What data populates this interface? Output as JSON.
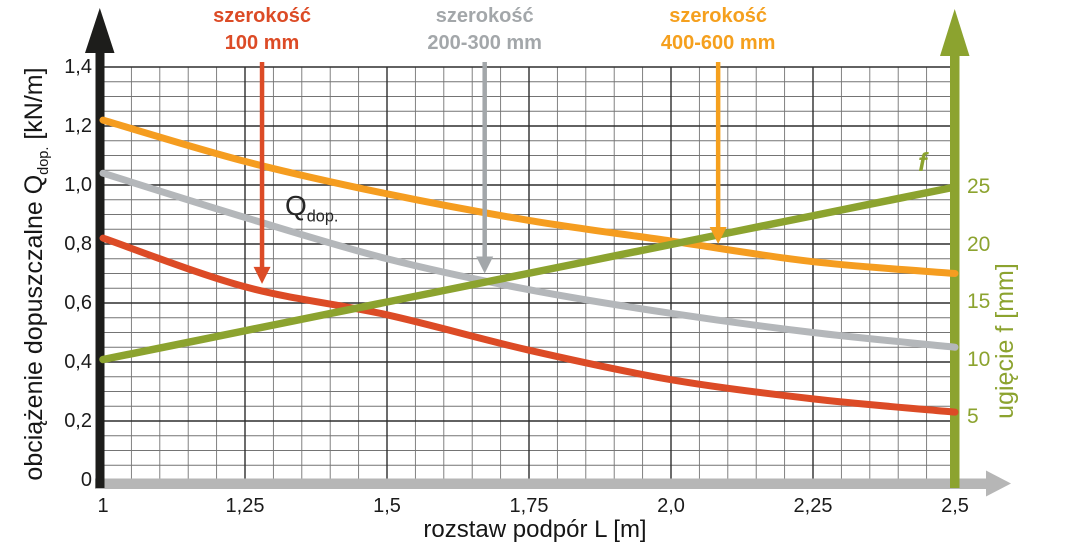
{
  "chart_data": {
    "type": "line",
    "title": "",
    "xlabel": "rozstaw podpór L [m]",
    "grid": "on",
    "legend_position": "none",
    "xlim": [
      1,
      2.5
    ],
    "x": [
      1,
      1.25,
      1.5,
      1.75,
      2,
      2.25,
      2.5
    ],
    "x_tick_labels": [
      "1",
      "1,25",
      "1,5",
      "1,75",
      "2,0",
      "2,25",
      "2,5"
    ],
    "left_axis": {
      "label_pre": "obciążenie dopuszczalne Q",
      "label_sub": "dop.",
      "label_post": " [kN/m]",
      "range": [
        0,
        1.4
      ],
      "ticks": [
        0,
        0.2,
        0.4,
        0.6,
        0.8,
        1.0,
        1.2,
        1.4
      ],
      "tick_labels": [
        "0",
        "0,2",
        "0,4",
        "0,6",
        "0,8",
        "1,0",
        "1,2",
        "1,4"
      ],
      "color": "#1d1d1b"
    },
    "right_axis": {
      "label": "ugięcie f [mm]",
      "range": [
        0,
        25
      ],
      "ticks": [
        5,
        10,
        15,
        20,
        25
      ],
      "tick_labels": [
        "5",
        "10",
        "15",
        "20",
        "25"
      ],
      "color": "#8ca32f"
    },
    "series": [
      {
        "id": "width-100",
        "name": "szerokość 100 mm",
        "axis": "left",
        "color": "#dc4b26",
        "width": 7,
        "values": [
          0.82,
          0.655,
          0.56,
          0.44,
          0.34,
          0.275,
          0.23
        ]
      },
      {
        "id": "width-200-300",
        "name": "szerokość 200-300 mm",
        "axis": "left",
        "color": "#b4b7ba",
        "width": 7,
        "values": [
          1.04,
          0.89,
          0.75,
          0.645,
          0.565,
          0.5,
          0.45
        ]
      },
      {
        "id": "width-400-600",
        "name": "szerokość 400-600 mm",
        "axis": "left",
        "color": "#f59d20",
        "width": 7,
        "values": [
          1.22,
          1.08,
          0.97,
          0.88,
          0.81,
          0.74,
          0.7
        ]
      },
      {
        "id": "deflection-f",
        "name": "ugięcie f",
        "axis": "right",
        "color": "#8ca32f",
        "width": 7.5,
        "values": [
          10,
          12.5,
          15,
          17.5,
          20,
          22.5,
          25
        ]
      }
    ],
    "annotations": [
      {
        "label_line1": "szerokość",
        "label_line2": "100 mm",
        "color": "#dc4b26",
        "x": 1.28,
        "tip_q": 0.665
      },
      {
        "label_line1": "szerokość",
        "label_line2": "200-300 mm",
        "color": "#a3a7aa",
        "x": 1.672,
        "tip_q": 0.7
      },
      {
        "label_line1": "szerokość",
        "label_line2": "400-600 mm",
        "color": "#f5a01e",
        "x": 2.083,
        "tip_q": 0.8
      }
    ],
    "curve_label": {
      "main": "Q",
      "sub": "dop."
    },
    "deflection_label": "f",
    "axis_colors": {
      "x_axis": "#b6b6b6",
      "left_axis": "#1d1d1b",
      "right_axis": "#8ca32f"
    }
  }
}
